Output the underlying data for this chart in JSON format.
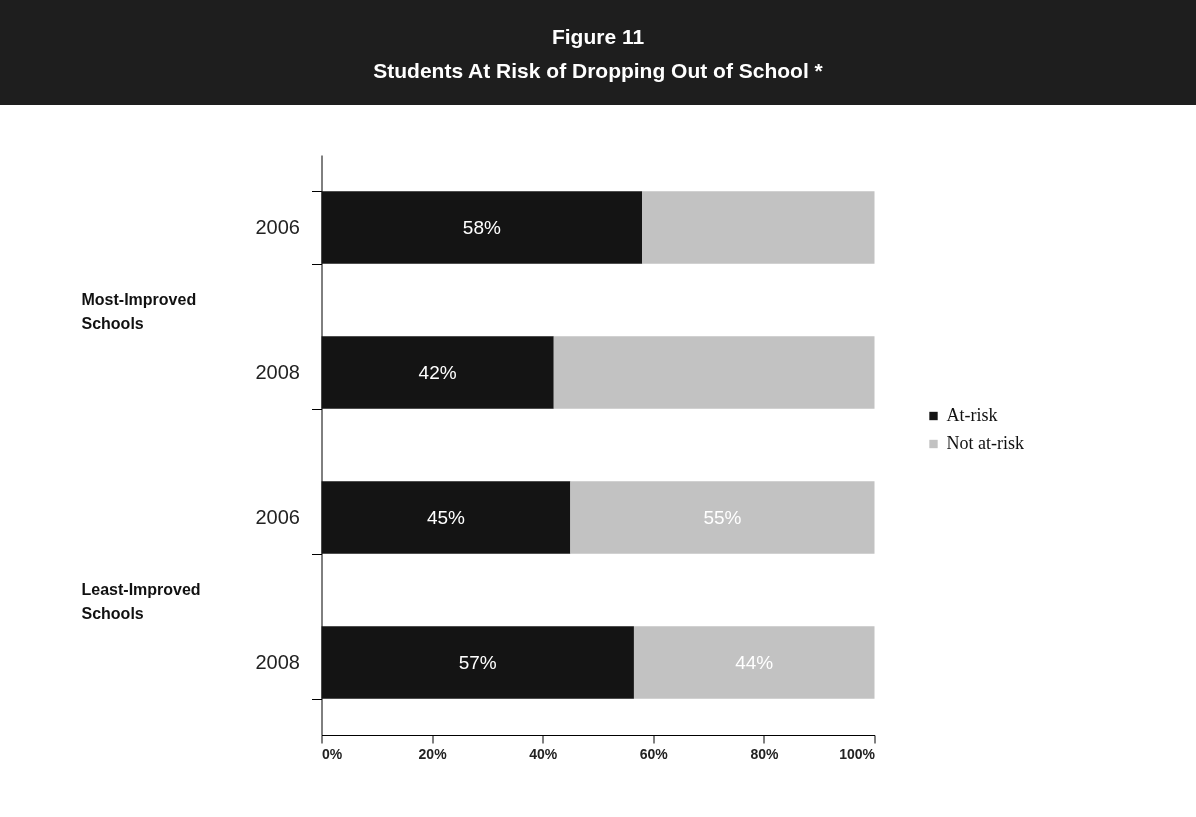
{
  "chart_data": {
    "type": "bar",
    "orientation": "horizontal",
    "stacked": true,
    "title": "Figure 11",
    "subtitle": "Students At Risk of Dropping Out of School *",
    "categories": [
      "2006",
      "2008",
      "2006",
      "2008"
    ],
    "series": [
      {
        "name": "At-risk",
        "color": "#141414",
        "values": [
          58,
          42,
          45,
          56.5
        ],
        "value_labels": [
          "58%",
          "42%",
          "45%",
          "57%"
        ]
      },
      {
        "name": "Not at-risk",
        "color": "#c2c2c2",
        "values": [
          42,
          58,
          55,
          43.5
        ],
        "value_labels": [
          null,
          null,
          "55%",
          "44%"
        ]
      }
    ],
    "xlim": [
      0,
      100
    ],
    "xticks": [
      {
        "value": 0,
        "label": "0%"
      },
      {
        "value": 20,
        "label": "20%"
      },
      {
        "value": 40,
        "label": "40%"
      },
      {
        "value": 60,
        "label": "60%"
      },
      {
        "value": 80,
        "label": "80%"
      },
      {
        "value": 100,
        "label": "100%"
      }
    ],
    "annotations": [
      "Most-Improved Schools",
      "Least-Improved Schools"
    ],
    "legend": "right"
  }
}
